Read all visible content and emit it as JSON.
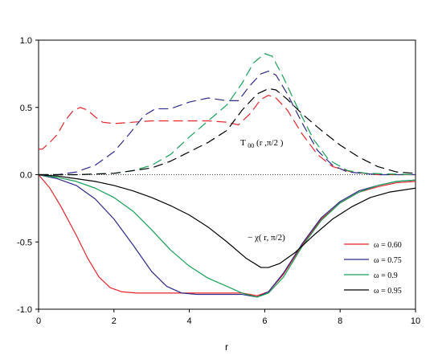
{
  "chart_data": {
    "type": "line",
    "title": "",
    "xlabel": "r",
    "ylabel": "",
    "xlim": [
      0,
      10
    ],
    "ylim": [
      -1.0,
      1.0
    ],
    "x_ticks": [
      "0",
      "2",
      "4",
      "6",
      "8",
      "10"
    ],
    "y_ticks": [
      "1.0",
      "0.5",
      "0.0",
      "-0.5",
      "-1.0"
    ],
    "grid": false,
    "zero_line": "dotted",
    "legend_position": "bottom-right",
    "annotations": {
      "t00": "T",
      "t00_sub": "00",
      "t00_args": " (r ,π/2 )",
      "chi": "− χ(  r, π/2)"
    },
    "series": [
      {
        "name": "ω = 0.60",
        "color": "#e3262b",
        "t00": [
          [
            0,
            0.19
          ],
          [
            0.1,
            0.19
          ],
          [
            0.3,
            0.24
          ],
          [
            0.5,
            0.3
          ],
          [
            0.7,
            0.4
          ],
          [
            0.9,
            0.47
          ],
          [
            1.1,
            0.5
          ],
          [
            1.3,
            0.48
          ],
          [
            1.5,
            0.43
          ],
          [
            1.7,
            0.39
          ],
          [
            2.0,
            0.38
          ],
          [
            2.5,
            0.39
          ],
          [
            3.0,
            0.4
          ],
          [
            3.5,
            0.4
          ],
          [
            4.0,
            0.4
          ],
          [
            4.5,
            0.4
          ],
          [
            5.0,
            0.39
          ],
          [
            5.3,
            0.37
          ],
          [
            5.6,
            0.45
          ],
          [
            5.9,
            0.56
          ],
          [
            6.1,
            0.59
          ],
          [
            6.3,
            0.57
          ],
          [
            6.6,
            0.48
          ],
          [
            7.0,
            0.3
          ],
          [
            7.4,
            0.15
          ],
          [
            7.8,
            0.06
          ],
          [
            8.3,
            0.02
          ],
          [
            9.0,
            0.0
          ],
          [
            10,
            0.0
          ]
        ],
        "chi": [
          [
            0,
            0.0
          ],
          [
            0.3,
            -0.1
          ],
          [
            0.6,
            -0.24
          ],
          [
            1.0,
            -0.45
          ],
          [
            1.3,
            -0.62
          ],
          [
            1.6,
            -0.76
          ],
          [
            1.9,
            -0.84
          ],
          [
            2.2,
            -0.87
          ],
          [
            2.6,
            -0.88
          ],
          [
            3.0,
            -0.88
          ],
          [
            4.0,
            -0.88
          ],
          [
            5.0,
            -0.88
          ],
          [
            5.4,
            -0.88
          ],
          [
            5.8,
            -0.9
          ],
          [
            6.1,
            -0.87
          ],
          [
            6.5,
            -0.74
          ],
          [
            7.0,
            -0.52
          ],
          [
            7.5,
            -0.33
          ],
          [
            8.0,
            -0.21
          ],
          [
            8.5,
            -0.13
          ],
          [
            9.0,
            -0.09
          ],
          [
            9.5,
            -0.06
          ],
          [
            10,
            -0.05
          ]
        ]
      },
      {
        "name": "ω = 0.75",
        "color": "#2d2a8a",
        "t00": [
          [
            0,
            0.0
          ],
          [
            0.5,
            0.0
          ],
          [
            1.0,
            0.02
          ],
          [
            1.5,
            0.07
          ],
          [
            2.0,
            0.17
          ],
          [
            2.4,
            0.3
          ],
          [
            2.8,
            0.44
          ],
          [
            3.1,
            0.49
          ],
          [
            3.5,
            0.49
          ],
          [
            4.0,
            0.54
          ],
          [
            4.5,
            0.57
          ],
          [
            5.0,
            0.55
          ],
          [
            5.3,
            0.55
          ],
          [
            5.6,
            0.66
          ],
          [
            5.9,
            0.75
          ],
          [
            6.1,
            0.77
          ],
          [
            6.3,
            0.74
          ],
          [
            6.6,
            0.6
          ],
          [
            7.0,
            0.38
          ],
          [
            7.4,
            0.18
          ],
          [
            7.8,
            0.07
          ],
          [
            8.2,
            0.02
          ],
          [
            9.0,
            0.0
          ],
          [
            10,
            0.0
          ]
        ],
        "chi": [
          [
            0,
            0.0
          ],
          [
            0.5,
            -0.03
          ],
          [
            1.0,
            -0.08
          ],
          [
            1.5,
            -0.18
          ],
          [
            2.0,
            -0.33
          ],
          [
            2.5,
            -0.52
          ],
          [
            3.0,
            -0.72
          ],
          [
            3.4,
            -0.83
          ],
          [
            3.8,
            -0.88
          ],
          [
            4.2,
            -0.89
          ],
          [
            4.6,
            -0.89
          ],
          [
            5.0,
            -0.89
          ],
          [
            5.4,
            -0.89
          ],
          [
            5.8,
            -0.91
          ],
          [
            6.1,
            -0.87
          ],
          [
            6.5,
            -0.73
          ],
          [
            7.0,
            -0.51
          ],
          [
            7.5,
            -0.32
          ],
          [
            8.0,
            -0.2
          ],
          [
            8.5,
            -0.12
          ],
          [
            9.0,
            -0.08
          ],
          [
            9.5,
            -0.05
          ],
          [
            10,
            -0.04
          ]
        ]
      },
      {
        "name": "ω = 0.9",
        "color": "#17a058",
        "t00": [
          [
            0,
            0.0
          ],
          [
            1.0,
            0.0
          ],
          [
            2.0,
            0.01
          ],
          [
            2.5,
            0.03
          ],
          [
            3.0,
            0.07
          ],
          [
            3.5,
            0.15
          ],
          [
            4.0,
            0.28
          ],
          [
            4.5,
            0.4
          ],
          [
            5.0,
            0.52
          ],
          [
            5.4,
            0.68
          ],
          [
            5.7,
            0.83
          ],
          [
            6.0,
            0.9
          ],
          [
            6.2,
            0.88
          ],
          [
            6.5,
            0.72
          ],
          [
            6.9,
            0.48
          ],
          [
            7.3,
            0.26
          ],
          [
            7.7,
            0.11
          ],
          [
            8.2,
            0.03
          ],
          [
            8.7,
            0.01
          ],
          [
            10,
            0.0
          ]
        ],
        "chi": [
          [
            0,
            0.0
          ],
          [
            0.5,
            -0.02
          ],
          [
            1.0,
            -0.05
          ],
          [
            1.5,
            -0.1
          ],
          [
            2.0,
            -0.17
          ],
          [
            2.5,
            -0.27
          ],
          [
            3.0,
            -0.41
          ],
          [
            3.5,
            -0.56
          ],
          [
            4.0,
            -0.68
          ],
          [
            4.5,
            -0.77
          ],
          [
            5.0,
            -0.83
          ],
          [
            5.4,
            -0.88
          ],
          [
            5.8,
            -0.91
          ],
          [
            6.1,
            -0.88
          ],
          [
            6.5,
            -0.76
          ],
          [
            7.0,
            -0.53
          ],
          [
            7.5,
            -0.34
          ],
          [
            8.0,
            -0.21
          ],
          [
            8.5,
            -0.13
          ],
          [
            9.0,
            -0.08
          ],
          [
            9.5,
            -0.05
          ],
          [
            10,
            -0.04
          ]
        ]
      },
      {
        "name": "ω = 0.95",
        "color": "#000000",
        "t00": [
          [
            0,
            0.0
          ],
          [
            1.0,
            0.0
          ],
          [
            2.0,
            0.01
          ],
          [
            3.0,
            0.05
          ],
          [
            3.5,
            0.1
          ],
          [
            4.0,
            0.17
          ],
          [
            4.5,
            0.24
          ],
          [
            5.0,
            0.33
          ],
          [
            5.4,
            0.48
          ],
          [
            5.8,
            0.6
          ],
          [
            6.1,
            0.64
          ],
          [
            6.3,
            0.63
          ],
          [
            6.6,
            0.56
          ],
          [
            7.0,
            0.45
          ],
          [
            7.5,
            0.33
          ],
          [
            8.0,
            0.22
          ],
          [
            8.5,
            0.13
          ],
          [
            9.0,
            0.06
          ],
          [
            9.5,
            0.02
          ],
          [
            10,
            0.01
          ]
        ],
        "chi": [
          [
            0,
            0.0
          ],
          [
            0.5,
            -0.01
          ],
          [
            1.0,
            -0.03
          ],
          [
            1.5,
            -0.05
          ],
          [
            2.0,
            -0.08
          ],
          [
            2.5,
            -0.12
          ],
          [
            3.0,
            -0.17
          ],
          [
            3.5,
            -0.23
          ],
          [
            4.0,
            -0.3
          ],
          [
            4.5,
            -0.39
          ],
          [
            5.0,
            -0.5
          ],
          [
            5.5,
            -0.62
          ],
          [
            5.9,
            -0.69
          ],
          [
            6.1,
            -0.69
          ],
          [
            6.4,
            -0.66
          ],
          [
            6.8,
            -0.58
          ],
          [
            7.3,
            -0.45
          ],
          [
            7.8,
            -0.33
          ],
          [
            8.3,
            -0.24
          ],
          [
            8.8,
            -0.17
          ],
          [
            9.3,
            -0.13
          ],
          [
            10,
            -0.1
          ]
        ]
      }
    ]
  }
}
